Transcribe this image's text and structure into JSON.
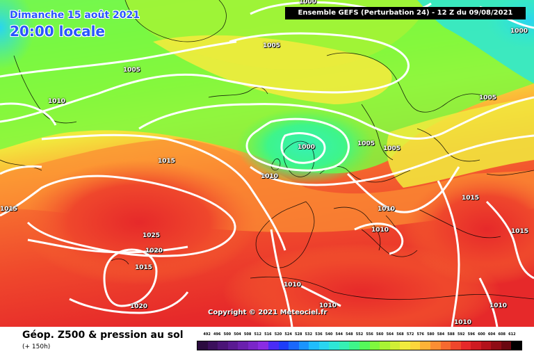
{
  "header": {
    "date_line": "Dimanche 15 août 2021",
    "time_line": "20:00 locale",
    "run_info": "Ensemble GEFS  (Perturbation 24)  -  12 Z du 09/08/2021"
  },
  "footer": {
    "product_title": "Géop. Z500 & pression au sol",
    "lead_time": "(+ 150h)",
    "copyright": "Copyright © 2021 Meteociel.fr"
  },
  "color_scale": {
    "labels": [
      "492",
      "496",
      "500",
      "504",
      "508",
      "512",
      "516",
      "520",
      "524",
      "528",
      "532",
      "536",
      "540",
      "544",
      "548",
      "552",
      "556",
      "560",
      "564",
      "568",
      "572",
      "576",
      "580",
      "584",
      "588",
      "592",
      "596",
      "600",
      "604",
      "608",
      "612"
    ],
    "colors": [
      "#2b0b3f",
      "#3b0f5c",
      "#4b1477",
      "#5a1a92",
      "#6a20ad",
      "#7a26c8",
      "#8a2ce3",
      "#4a2cf5",
      "#1e3df8",
      "#1a68fb",
      "#1b94fd",
      "#20bdfc",
      "#29d5f0",
      "#2ee6d6",
      "#36f0b4",
      "#3ef58a",
      "#55f85a",
      "#7ff83e",
      "#a8f334",
      "#d0ef36",
      "#f1eb3d",
      "#fcd63b",
      "#fdb237",
      "#fb8e33",
      "#f66a2f",
      "#ef472c",
      "#e6292a",
      "#cf1b22",
      "#b3121b",
      "#8f0c15",
      "#6a0710",
      "#000000"
    ]
  },
  "isobars": [
    {
      "label": "1000",
      "pos": "top-center"
    },
    {
      "label": "1000",
      "pos": "top-right"
    },
    {
      "label": "1005",
      "pos": "north-atlantic"
    },
    {
      "label": "1005",
      "pos": "greenland"
    },
    {
      "label": "1010",
      "pos": "greenland-coast"
    },
    {
      "label": "1005",
      "pos": "scandinavia-east"
    },
    {
      "label": "1000",
      "pos": "north-sea-low"
    },
    {
      "label": "1005",
      "pos": "denmark"
    },
    {
      "label": "1005",
      "pos": "baltic"
    },
    {
      "label": "1010",
      "pos": "ireland"
    },
    {
      "label": "1015",
      "pos": "mid-atlantic"
    },
    {
      "label": "1015",
      "pos": "west-edge"
    },
    {
      "label": "1025",
      "pos": "azores-high"
    },
    {
      "label": "1020",
      "pos": "azores-inner"
    },
    {
      "label": "1015",
      "pos": "canaries"
    },
    {
      "label": "1020",
      "pos": "south-west"
    },
    {
      "label": "1010",
      "pos": "alps"
    },
    {
      "label": "1010",
      "pos": "italy"
    },
    {
      "label": "1015",
      "pos": "balkans"
    },
    {
      "label": "1015",
      "pos": "east-edge"
    },
    {
      "label": "1010",
      "pos": "iberia"
    },
    {
      "label": "1010",
      "pos": "north-africa"
    },
    {
      "label": "1010",
      "pos": "libya"
    },
    {
      "label": "1010",
      "pos": "south-east"
    }
  ]
}
